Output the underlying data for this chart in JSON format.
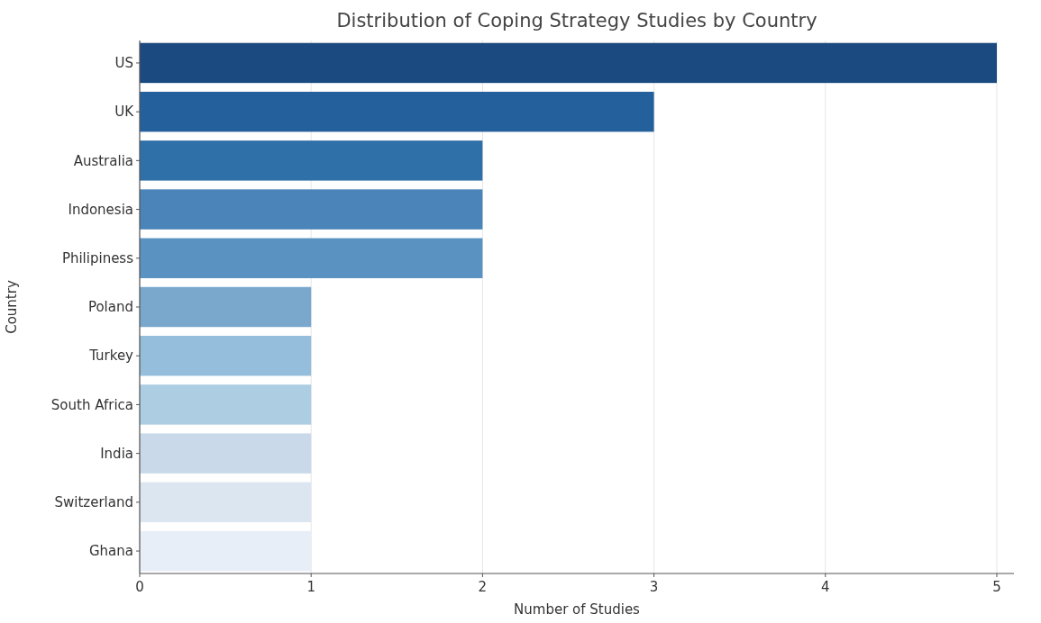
{
  "chart_data": {
    "type": "bar",
    "orientation": "horizontal",
    "title": "Distribution of Coping Strategy Studies by Country",
    "xlabel": "Number of Studies",
    "ylabel": "Country",
    "categories": [
      "US",
      "UK",
      "Australia",
      "Indonesia",
      "Philipiness",
      "Poland",
      "Turkey",
      "South Africa",
      "India",
      "Switzerland",
      "Ghana"
    ],
    "values": [
      5,
      3,
      2,
      2,
      2,
      1,
      1,
      1,
      1,
      1,
      1
    ],
    "colors": [
      "#1a4a80",
      "#23609c",
      "#3070a8",
      "#4a84b8",
      "#5a93c2",
      "#79a8cc",
      "#94bedb",
      "#adcde2",
      "#c9d9ea",
      "#dbe6f1",
      "#e8eef7"
    ],
    "xlim": [
      0,
      5.1
    ],
    "xticks": [
      0,
      1,
      2,
      3,
      4,
      5
    ],
    "grid": "x"
  }
}
